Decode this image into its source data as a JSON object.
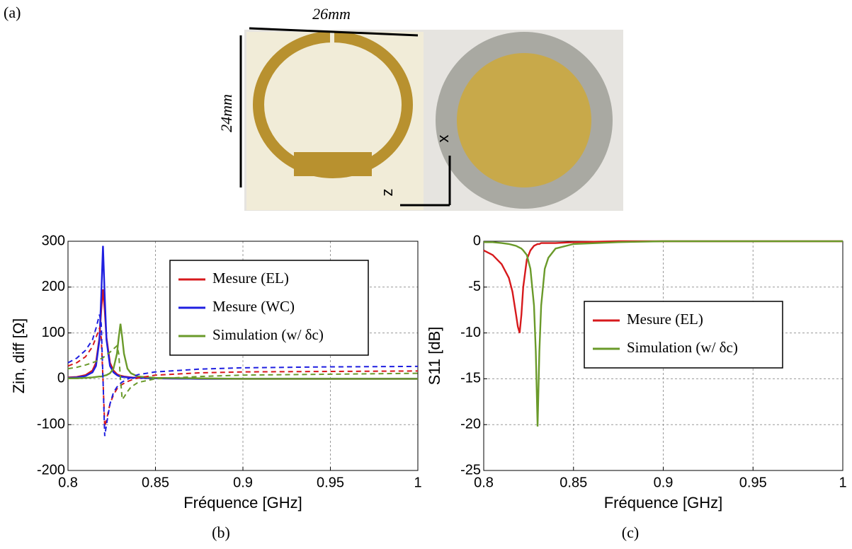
{
  "figure": {
    "panel_a": "(a)",
    "width_label": "26mm",
    "height_label": "24mm",
    "axis_x": "x",
    "axis_z": "z",
    "panel_b": "(b)",
    "panel_c": "(c)"
  },
  "chart_data": [
    {
      "type": "line",
      "xlabel": "Fréquence [GHz]",
      "ylabel": "Zin, diff [Ω]",
      "x": [
        0.8,
        0.805,
        0.81,
        0.814,
        0.816,
        0.818,
        0.819,
        0.82,
        0.821,
        0.822,
        0.824,
        0.826,
        0.828,
        0.829,
        0.83,
        0.831,
        0.832,
        0.834,
        0.836,
        0.84,
        0.85,
        0.875,
        0.9,
        0.95,
        1.0
      ],
      "xlim": [
        0.8,
        1
      ],
      "xticks": [
        0.8,
        0.85,
        0.9,
        0.95,
        1
      ],
      "ylim": [
        -200,
        300
      ],
      "yticks": [
        -200,
        -100,
        0,
        100,
        200,
        300
      ],
      "grid": true,
      "legend": "upper right",
      "series": [
        {
          "name": "Mesure (EL)",
          "color": "#d7191c",
          "values": [
            3,
            4,
            8,
            18,
            35,
            90,
            150,
            195,
            150,
            90,
            35,
            18,
            10,
            8,
            7,
            6,
            5,
            4,
            3,
            2,
            1,
            0,
            0,
            0,
            0
          ]
        },
        {
          "name": "Mesure (WC)",
          "color": "#1f1fe0",
          "values": [
            2,
            3,
            6,
            14,
            28,
            85,
            180,
            290,
            180,
            85,
            28,
            14,
            8,
            6,
            5,
            4,
            4,
            3,
            2,
            2,
            1,
            0,
            0,
            0,
            0
          ]
        },
        {
          "name": "Simulation (w/ δc)",
          "color": "#6a9a2a",
          "values": [
            1,
            1,
            2,
            3,
            4,
            5,
            5,
            6,
            7,
            8,
            12,
            22,
            55,
            90,
            120,
            90,
            55,
            22,
            12,
            5,
            2,
            1,
            0,
            0,
            0
          ]
        },
        {
          "color": "#d7191c",
          "dash": true,
          "values": [
            28,
            35,
            48,
            70,
            90,
            110,
            90,
            0,
            -105,
            -90,
            -55,
            -35,
            -22,
            -18,
            -15,
            -12,
            -10,
            -6,
            -3,
            2,
            8,
            13,
            15,
            16,
            17
          ]
        },
        {
          "color": "#1f1fe0",
          "dash": true,
          "values": [
            35,
            45,
            62,
            85,
            110,
            140,
            120,
            0,
            -125,
            -100,
            -55,
            -30,
            -18,
            -13,
            -10,
            -7,
            -5,
            -1,
            3,
            9,
            15,
            21,
            24,
            26,
            27
          ]
        },
        {
          "color": "#6a9a2a",
          "dash": true,
          "values": [
            22,
            25,
            30,
            35,
            38,
            42,
            44,
            46,
            49,
            52,
            58,
            65,
            72,
            55,
            0,
            -45,
            -40,
            -28,
            -18,
            -8,
            0,
            5,
            8,
            10,
            12
          ]
        }
      ]
    },
    {
      "type": "line",
      "xlabel": "Fréquence [GHz]",
      "ylabel": "S11 [dB]",
      "x": [
        0.8,
        0.805,
        0.81,
        0.814,
        0.816,
        0.818,
        0.819,
        0.82,
        0.821,
        0.822,
        0.824,
        0.826,
        0.828,
        0.829,
        0.83,
        0.831,
        0.832,
        0.834,
        0.836,
        0.84,
        0.85,
        0.875,
        0.9,
        0.95,
        1.0
      ],
      "xlim": [
        0.8,
        1
      ],
      "xticks": [
        0.8,
        0.85,
        0.9,
        0.95,
        1
      ],
      "ylim": [
        -25,
        0
      ],
      "yticks": [
        -25,
        -20,
        -15,
        -10,
        -5,
        0
      ],
      "grid": true,
      "legend": "center right",
      "series": [
        {
          "name": "Mesure (EL)",
          "color": "#d7191c",
          "values": [
            -1,
            -1.5,
            -2.5,
            -4,
            -5.5,
            -8,
            -9.3,
            -10,
            -8,
            -5,
            -2,
            -1,
            -0.5,
            -0.4,
            -0.3,
            -0.3,
            -0.2,
            -0.2,
            -0.2,
            -0.2,
            -0.1,
            0,
            0,
            0,
            0
          ]
        },
        {
          "name": "Simulation (w/ δc)",
          "color": "#6a9a2a",
          "values": [
            -0.1,
            -0.1,
            -0.2,
            -0.3,
            -0.4,
            -0.5,
            -0.6,
            -0.7,
            -0.8,
            -1,
            -1.5,
            -3,
            -7,
            -12,
            -20.2,
            -12,
            -7,
            -3,
            -1.8,
            -0.8,
            -0.3,
            -0.1,
            0,
            0,
            0
          ]
        }
      ]
    }
  ]
}
